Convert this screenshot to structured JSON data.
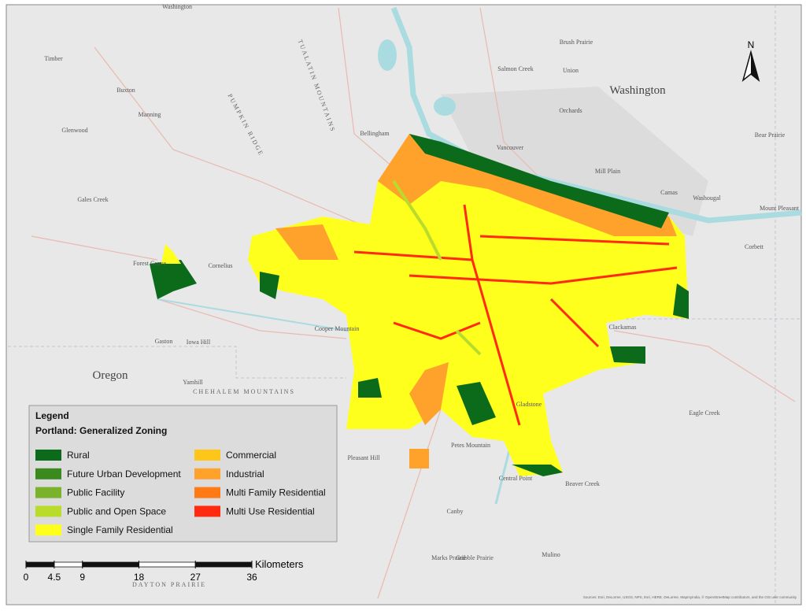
{
  "map": {
    "north": "N",
    "legend": {
      "title": "Legend",
      "subtitle": "Portland: Generalized Zoning",
      "items": [
        {
          "label": "Rural",
          "color": "#0b6b1a"
        },
        {
          "label": "Future Urban Development",
          "color": "#3a8a1e"
        },
        {
          "label": "Public Facility",
          "color": "#7bb22c"
        },
        {
          "label": "Public and Open Space",
          "color": "#b9db2a"
        },
        {
          "label": "Single Family Residential",
          "color": "#ffff1e"
        },
        {
          "label": "Commercial",
          "color": "#ffc61a"
        },
        {
          "label": "Industrial",
          "color": "#ffa22b"
        },
        {
          "label": "Multi Family Residential",
          "color": "#ff7a14"
        },
        {
          "label": "Multi Use Residential",
          "color": "#ff2a10"
        }
      ]
    },
    "scale": {
      "unit": "Kilometers",
      "ticks": [
        0,
        4.5,
        9,
        18,
        27,
        36
      ]
    },
    "regions": [
      "Washington",
      "Oregon"
    ],
    "places": [
      "Washington",
      "Timber",
      "Buxton",
      "Manning",
      "Glenwood",
      "Gales Creek",
      "Forest Grove",
      "Cornelius",
      "Vancouver",
      "Orchards",
      "Union",
      "Brush Prairie",
      "Salmon Creek",
      "Mill Plain",
      "Camas",
      "Washougal",
      "Mount Pleasant",
      "Bear Prairie",
      "Corbett",
      "Iowa Hill",
      "Gaston",
      "Yamhill",
      "Cooper Mountain",
      "Clackamas",
      "Gladstone",
      "Pleasant Hill",
      "Petes Mountain",
      "Central Point",
      "Beaver Creek",
      "Eagle Creek",
      "Canby",
      "Marks Prairie",
      "Gribble Prairie",
      "Mulino",
      "Bellingham"
    ],
    "ridges": [
      "PUMPKIN RIDGE",
      "TUALATIN MOUNTAINS",
      "CHEHALEM MOUNTAINS",
      "DAYTON PRAIRIE"
    ],
    "attribution": "Sources: Esri, DeLorme, USGS, NPS, Esri, HERE, DeLorme, MapmyIndia, © OpenStreetMap contributors, and the GIS user community"
  }
}
